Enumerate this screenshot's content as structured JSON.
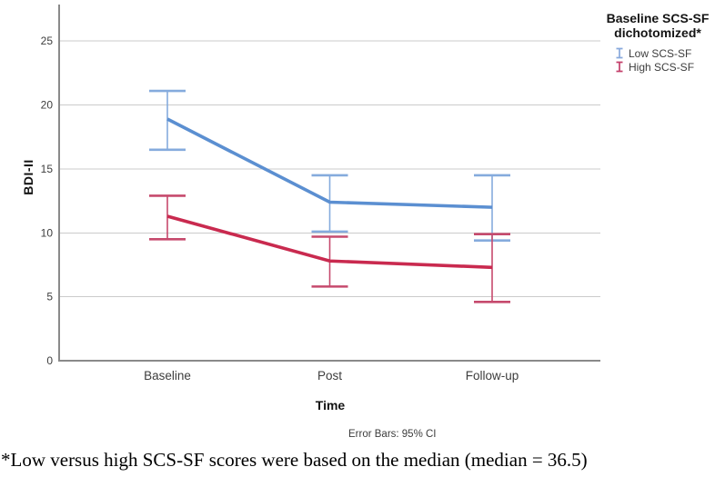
{
  "chart_data": {
    "type": "line",
    "categories": [
      "Baseline",
      "Post",
      "Follow-up"
    ],
    "series": [
      {
        "name": "Low SCS-SF",
        "color": "#5b8fd1",
        "error_color": "#85abdd",
        "values": [
          18.9,
          12.4,
          12.0
        ],
        "ci_low": [
          16.5,
          10.1,
          9.4
        ],
        "ci_high": [
          21.1,
          14.5,
          14.5
        ]
      },
      {
        "name": "High SCS-SF",
        "color": "#c92a4f",
        "error_color": "#c64a6d",
        "values": [
          11.3,
          7.8,
          7.3
        ],
        "ci_low": [
          9.5,
          5.8,
          4.6
        ],
        "ci_high": [
          12.9,
          9.7,
          9.9
        ]
      }
    ],
    "xlabel": "Time",
    "ylabel": "BDI-II",
    "y_ticks": [
      0,
      5,
      10,
      15,
      20,
      25
    ],
    "ylim": [
      0,
      27.9
    ],
    "grid": true,
    "grid_color": "#cbcbcb",
    "axis_color": "#8a8a8a",
    "label_color": "#3d3d3d",
    "error_bars": "95% CI",
    "caption": "Error Bars: 95% CI",
    "footnote": "*Low versus high SCS-SF scores were based on the median (median = 36.5)",
    "legend": {
      "position": "top-right",
      "title": "Baseline SCS-SF dichotomized*",
      "items": [
        {
          "label": "Low SCS-SF",
          "color": "#88a9dc"
        },
        {
          "label": "High SCS-SF",
          "color": "#c4406b"
        }
      ]
    }
  }
}
